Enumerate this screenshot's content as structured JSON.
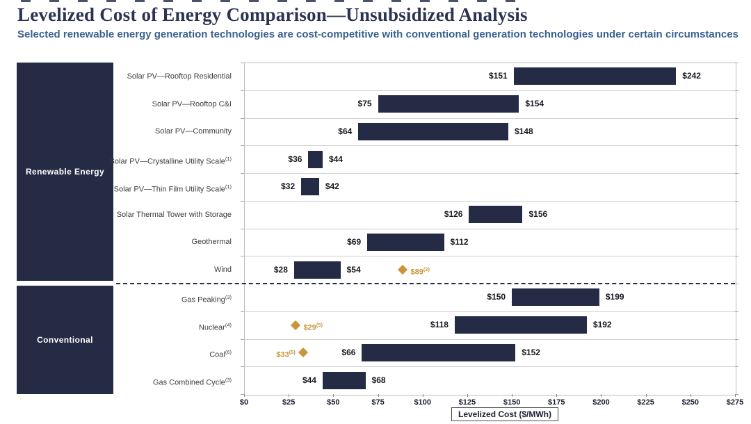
{
  "header": {
    "title": "Levelized Cost of Energy Comparison—Unsubsidized Analysis",
    "subtitle": "Selected renewable energy generation technologies are cost-competitive with conventional generation technologies under certain circumstances"
  },
  "chart_data": {
    "type": "bar",
    "subtype": "horizontal-range-bar",
    "title": "Levelized Cost of Energy Comparison—Unsubsidized Analysis",
    "x_axis": {
      "min": 0,
      "max": 275,
      "step": 25,
      "tick_labels": [
        "$0",
        "$25",
        "$50",
        "$75",
        "$100",
        "$125",
        "$150",
        "$175",
        "$200",
        "$225",
        "$250",
        "$275"
      ],
      "label": "Levelized Cost ($/MWh)"
    },
    "legend_position": "none",
    "grid": "horizontal-row-separators",
    "sections": [
      {
        "name": "Renewable Energy",
        "rows": [
          {
            "label": "Solar PV—Rooftop Residential",
            "low": 151,
            "high": 242,
            "low_label": "$151",
            "high_label": "$242"
          },
          {
            "label": "Solar PV—Rooftop C&I",
            "low": 75,
            "high": 154,
            "low_label": "$75",
            "high_label": "$154"
          },
          {
            "label": "Solar PV—Community",
            "low": 64,
            "high": 148,
            "low_label": "$64",
            "high_label": "$148"
          },
          {
            "label": "Solar PV—Crystalline Utility Scale",
            "note": "(1)",
            "low": 36,
            "high": 44,
            "low_label": "$36",
            "high_label": "$44"
          },
          {
            "label": "Solar PV—Thin Film Utility Scale",
            "note": "(1)",
            "low": 32,
            "high": 42,
            "low_label": "$32",
            "high_label": "$42"
          },
          {
            "label": "Solar Thermal Tower with Storage",
            "low": 126,
            "high": 156,
            "low_label": "$126",
            "high_label": "$156"
          },
          {
            "label": "Geothermal",
            "low": 69,
            "high": 112,
            "low_label": "$69",
            "high_label": "$112"
          },
          {
            "label": "Wind",
            "low": 28,
            "high": 54,
            "low_label": "$28",
            "high_label": "$54",
            "diamond": {
              "value": 89,
              "label": "$89",
              "note": "(2)",
              "label_side": "right"
            }
          }
        ]
      },
      {
        "name": "Conventional",
        "rows": [
          {
            "label": "Gas Peaking",
            "note": "(3)",
            "low": 150,
            "high": 199,
            "low_label": "$150",
            "high_label": "$199"
          },
          {
            "label": "Nuclear",
            "note": "(4)",
            "low": 118,
            "high": 192,
            "low_label": "$118",
            "high_label": "$192",
            "diamond": {
              "value": 29,
              "label": "$29",
              "note": "(5)",
              "label_side": "right"
            }
          },
          {
            "label": "Coal",
            "note": "(6)",
            "low": 66,
            "high": 152,
            "low_label": "$66",
            "high_label": "$152",
            "diamond": {
              "value": 33,
              "label": "$33",
              "note": "(5)",
              "label_side": "left"
            }
          },
          {
            "label": "Gas Combined Cycle",
            "note": "(3)",
            "low": 44,
            "high": 68,
            "low_label": "$44",
            "high_label": "$68"
          }
        ]
      }
    ],
    "colors": {
      "bar": "#252b45",
      "sidebar_block": "#252b45",
      "diamond": "#c9953c",
      "title": "#2b3352",
      "subtitle": "#39618f"
    }
  }
}
